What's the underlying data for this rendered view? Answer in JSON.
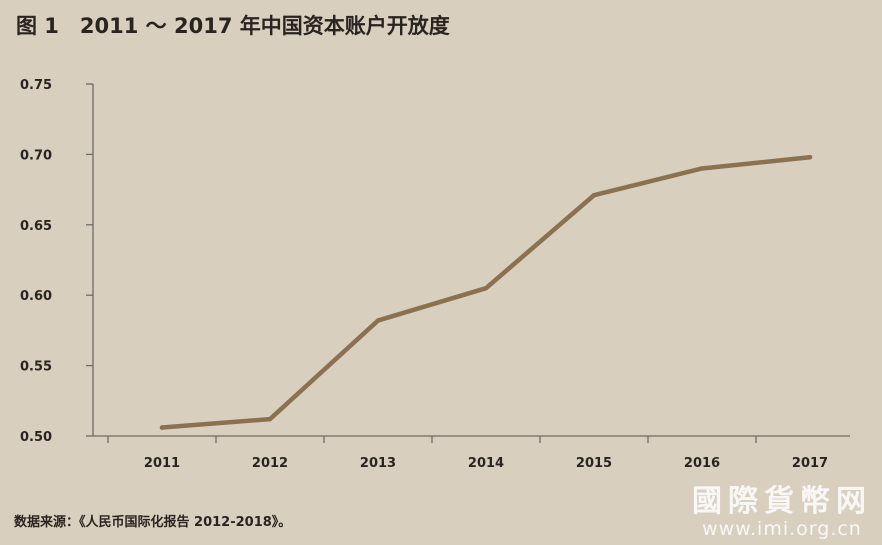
{
  "title": "图 1　2011 ～ 2017 年中国资本账户开放度",
  "source": "数据来源：《人民币国际化报告 2012-2018》。",
  "watermark": {
    "name": "國際貨幣网",
    "url": "www.imi.org.cn"
  },
  "colors": {
    "line": "#8b7150",
    "axis": "#6e6a66",
    "background": "#d8cfbf"
  },
  "chart_data": {
    "type": "line",
    "title": "图 1　2011 ～ 2017 年中国资本账户开放度",
    "xlabel": "",
    "ylabel": "",
    "categories": [
      "2011",
      "2012",
      "2013",
      "2014",
      "2015",
      "2016",
      "2017"
    ],
    "series": [
      {
        "values": [
          0.506,
          0.512,
          0.582,
          0.605,
          0.671,
          0.69,
          0.698
        ]
      }
    ],
    "ylim": [
      0.5,
      0.75
    ],
    "yticks": [
      "0.50",
      "0.55",
      "0.60",
      "0.65",
      "0.70",
      "0.75"
    ],
    "grid": false,
    "legend": "none"
  }
}
